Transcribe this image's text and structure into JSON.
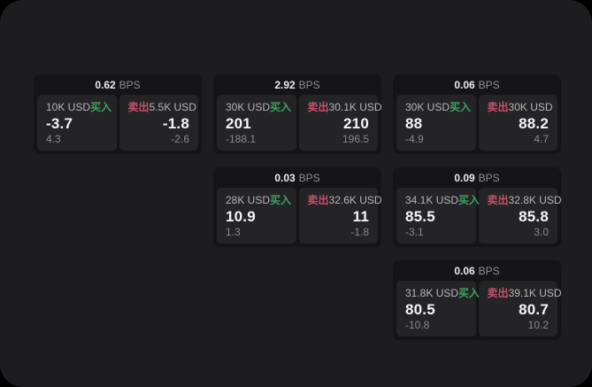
{
  "window": {
    "outer_background": "#000000",
    "surface_background": "#1d1d1f"
  },
  "labels": {
    "bps_unit": "BPS",
    "buy": "买入",
    "sell": "卖出"
  },
  "colors": {
    "buy_accent": "#3da35f",
    "sell_accent": "#c9506b",
    "card_background": "#151517",
    "panel_background": "#242427",
    "primary_text": "#f4f4f5",
    "muted_text": "#89898c",
    "label_text": "#b5b5b8"
  },
  "cards": [
    {
      "bps": "0.62",
      "grid": {
        "row": 1,
        "col": 1
      },
      "buy": {
        "amount": "10K USD",
        "price": "-3.7",
        "delta": "4.3"
      },
      "sell": {
        "amount": "5.5K USD",
        "price": "-1.8",
        "delta": "-2.6"
      }
    },
    {
      "bps": "2.92",
      "grid": {
        "row": 1,
        "col": 2
      },
      "buy": {
        "amount": "30K USD",
        "price": "201",
        "delta": "-188.1"
      },
      "sell": {
        "amount": "30.1K USD",
        "price": "210",
        "delta": "196.5"
      }
    },
    {
      "bps": "0.06",
      "grid": {
        "row": 1,
        "col": 3
      },
      "buy": {
        "amount": "30K USD",
        "price": "88",
        "delta": "-4.9"
      },
      "sell": {
        "amount": "30K USD",
        "price": "88.2",
        "delta": "4.7"
      }
    },
    {
      "bps": "0.03",
      "grid": {
        "row": 2,
        "col": 2
      },
      "buy": {
        "amount": "28K USD",
        "price": "10.9",
        "delta": "1.3"
      },
      "sell": {
        "amount": "32.6K USD",
        "price": "11",
        "delta": "-1.8"
      }
    },
    {
      "bps": "0.09",
      "grid": {
        "row": 2,
        "col": 3
      },
      "buy": {
        "amount": "34.1K USD",
        "price": "85.5",
        "delta": "-3.1"
      },
      "sell": {
        "amount": "32.8K USD",
        "price": "85.8",
        "delta": "3.0"
      }
    },
    {
      "bps": "0.06",
      "grid": {
        "row": 3,
        "col": 3
      },
      "buy": {
        "amount": "31.8K USD",
        "price": "80.5",
        "delta": "-10.8"
      },
      "sell": {
        "amount": "39.1K USD",
        "price": "80.7",
        "delta": "10.2"
      }
    }
  ]
}
